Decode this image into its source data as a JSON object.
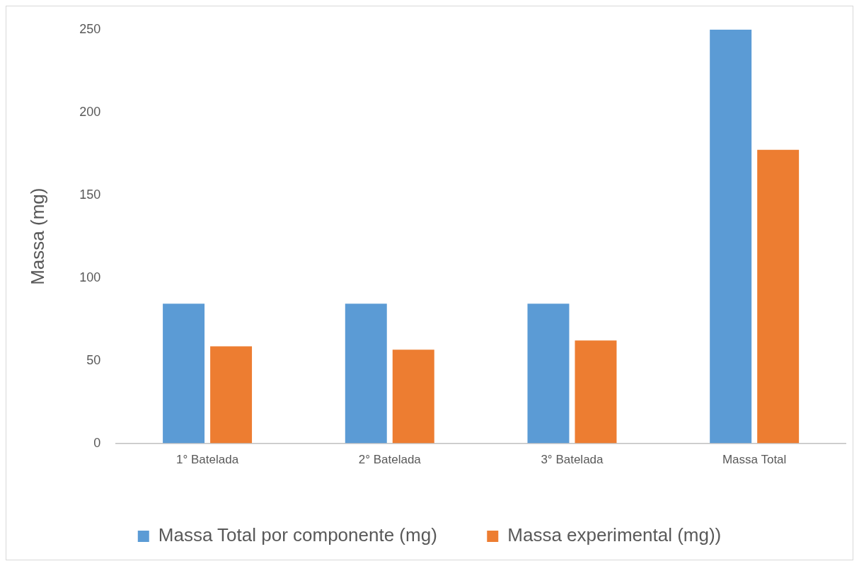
{
  "chart_data": {
    "type": "bar",
    "ylabel": "Massa (mg)",
    "categories": [
      "1° Batelada",
      "2° Batelada",
      "3° Batelada",
      "Massa Total"
    ],
    "series": [
      {
        "name": "Massa Total por componente (mg)",
        "color": "#5b9bd5",
        "values": [
          84.4,
          84.4,
          84.4,
          250
        ]
      },
      {
        "name": "Massa experimental (mg))",
        "color": "#ed7d31",
        "values": [
          58.6,
          56.6,
          62.1,
          177.3
        ]
      }
    ],
    "ylim": [
      0,
      250
    ],
    "yticks": [
      0,
      50,
      100,
      150,
      200,
      250
    ],
    "grid": false,
    "legend": "bottom"
  }
}
